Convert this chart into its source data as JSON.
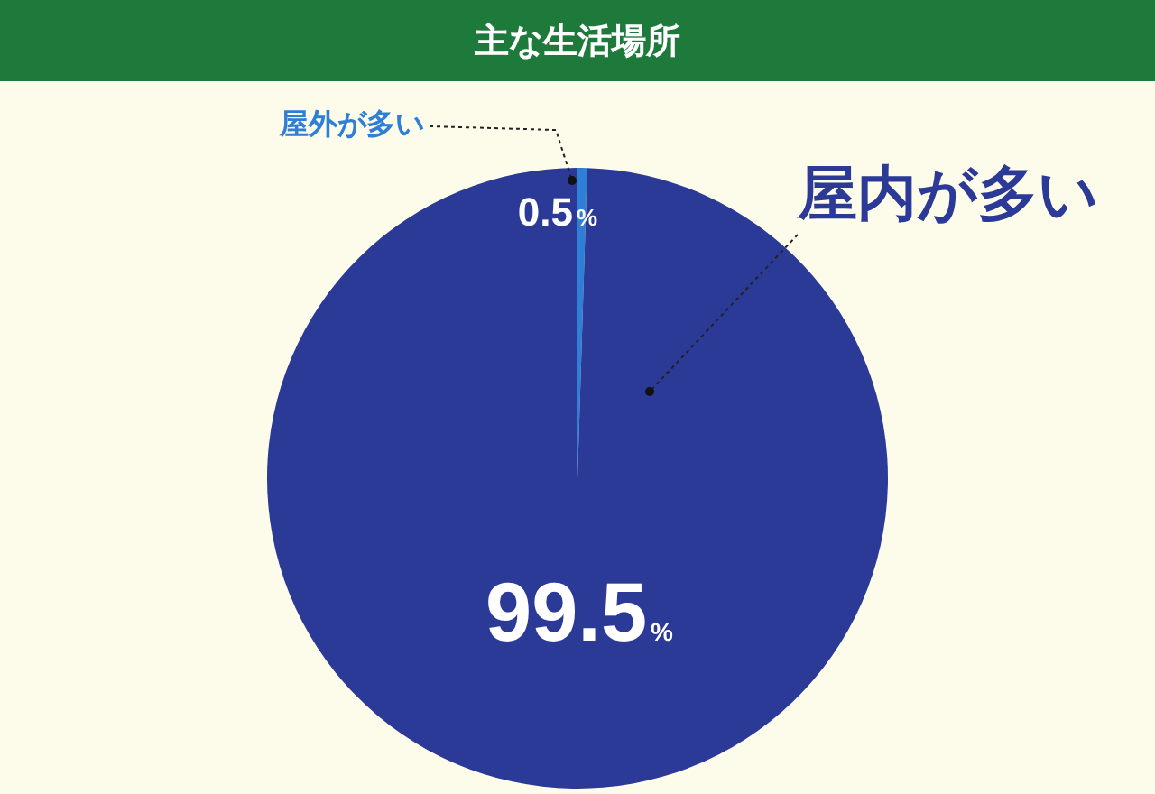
{
  "chart_data": {
    "type": "pie",
    "title": "主な生活場所",
    "categories": [
      "屋外が多い",
      "屋内が多い"
    ],
    "values": [
      0.5,
      99.5
    ],
    "colors": [
      "#2f7fd6",
      "#2c3a97"
    ],
    "value_labels": [
      "0.5%",
      "99.5%"
    ],
    "legend": false
  }
}
